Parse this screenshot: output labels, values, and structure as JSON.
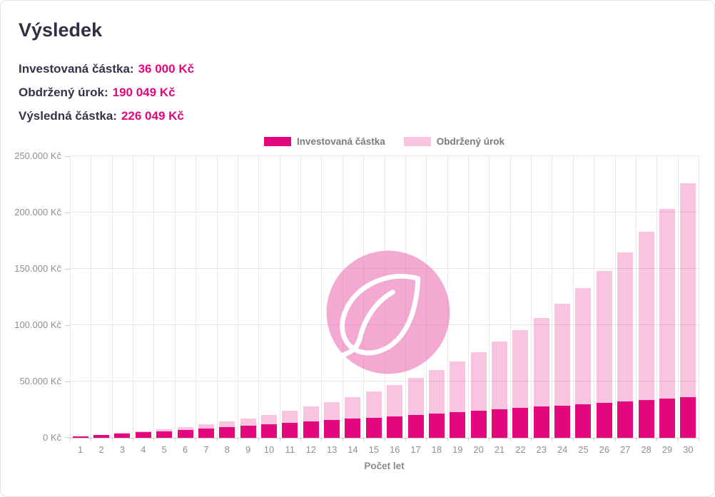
{
  "page": {
    "title": "Výsledek"
  },
  "summary": [
    {
      "label": "Investovaná částka:",
      "value": "36 000 Kč"
    },
    {
      "label": "Obdržený úrok:",
      "value": "190 049 Kč"
    },
    {
      "label": "Výsledná částka:",
      "value": "226 049 Kč"
    }
  ],
  "colors": {
    "accent": "#e2077c",
    "accent_light": "#f6c6dd",
    "heading": "#332e44",
    "tick_text": "#8f8f8f",
    "gridline": "#e6e6e6",
    "watermark_pink": "#f2a5ce"
  },
  "icons": {
    "watermark": "leaf-logo"
  },
  "chart_data": {
    "type": "bar",
    "stacked": true,
    "title": "",
    "xlabel": "Počet let",
    "ylabel": "",
    "ylim": [
      0,
      250000
    ],
    "grid": true,
    "legend_position": "top",
    "ytick_labels": [
      "0 Kč",
      "50.000 Kč",
      "100.000 Kč",
      "150.000 Kč",
      "200.000 Kč",
      "250.000 Kč"
    ],
    "categories": [
      "1",
      "2",
      "3",
      "4",
      "5",
      "6",
      "7",
      "8",
      "9",
      "10",
      "11",
      "12",
      "13",
      "14",
      "15",
      "16",
      "17",
      "18",
      "19",
      "20",
      "21",
      "22",
      "23",
      "24",
      "25",
      "26",
      "27",
      "28",
      "29",
      "30"
    ],
    "series": [
      {
        "name": "Investovaná částka",
        "color": "#e2077c",
        "values": [
          1200,
          2400,
          3600,
          4800,
          6000,
          7200,
          8400,
          9600,
          10800,
          12000,
          13200,
          14400,
          15600,
          16800,
          18000,
          19200,
          20400,
          21600,
          22800,
          24000,
          25200,
          26400,
          27600,
          28800,
          30000,
          31200,
          32400,
          33600,
          34800,
          36000
        ]
      },
      {
        "name": "Obdržený úrok",
        "color": "#f6c6dd",
        "values": [
          57,
          245,
          578,
          1072,
          1744,
          2611,
          3695,
          5018,
          6605,
          8485,
          10686,
          13244,
          16195,
          19581,
          23447,
          27844,
          32826,
          38456,
          44802,
          51937,
          59945,
          68917,
          78955,
          90169,
          102683,
          116634,
          132170,
          149460,
          168685,
          190049
        ]
      }
    ]
  }
}
